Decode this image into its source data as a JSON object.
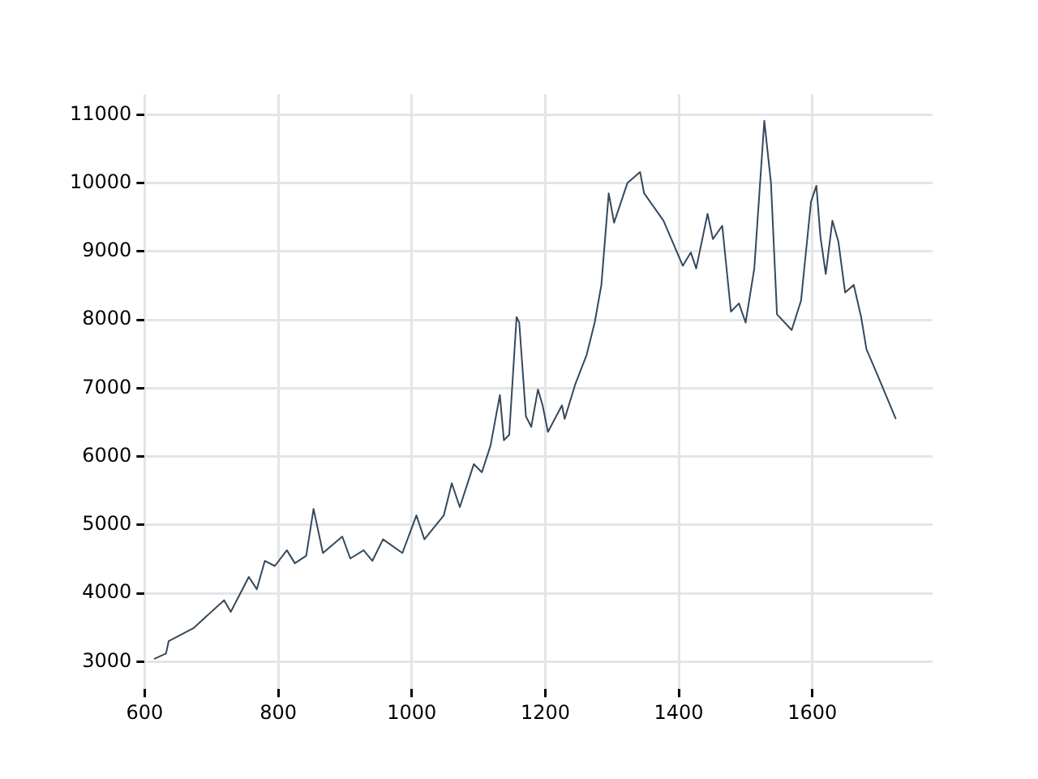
{
  "chart_data": {
    "type": "line",
    "xlim": [
      600,
      1780
    ],
    "ylim": [
      2600,
      11300
    ],
    "xticks": [
      600,
      800,
      1000,
      1200,
      1400,
      1600
    ],
    "yticks": [
      3000,
      4000,
      5000,
      6000,
      7000,
      8000,
      9000,
      10000,
      11000
    ],
    "grid": true,
    "legend": false,
    "marker": "none",
    "line_style": "solid",
    "series": [
      {
        "color": "#34495e",
        "x": [
          614,
          632,
          636,
          673,
          719,
          729,
          756,
          768,
          780,
          795,
          813,
          825,
          842,
          853,
          867,
          896,
          908,
          928,
          941,
          957,
          986,
          1007,
          1019,
          1048,
          1060,
          1072,
          1093,
          1105,
          1118,
          1132,
          1138,
          1146,
          1157,
          1161,
          1171,
          1179,
          1189,
          1196,
          1204,
          1225,
          1229,
          1245,
          1262,
          1274,
          1284,
          1295,
          1303,
          1323,
          1342,
          1348,
          1377,
          1406,
          1418,
          1426,
          1443,
          1451,
          1465,
          1478,
          1490,
          1500,
          1513,
          1528,
          1538,
          1547,
          1569,
          1583,
          1598,
          1606,
          1612,
          1620,
          1630,
          1639,
          1649,
          1662,
          1673,
          1681,
          1698,
          1725
        ],
        "values": [
          3040,
          3120,
          3300,
          3490,
          3900,
          3730,
          4240,
          4060,
          4475,
          4400,
          4630,
          4440,
          4550,
          5235,
          4590,
          4830,
          4510,
          4630,
          4475,
          4790,
          4590,
          5140,
          4790,
          5140,
          5610,
          5260,
          5890,
          5770,
          6160,
          6900,
          6240,
          6320,
          8040,
          7960,
          6590,
          6435,
          6980,
          6750,
          6360,
          6750,
          6550,
          7060,
          7490,
          7960,
          8510,
          9850,
          9420,
          10000,
          10160,
          9850,
          9450,
          8790,
          8985,
          8750,
          9550,
          9180,
          9375,
          8120,
          8240,
          7960,
          8750,
          10910,
          10000,
          8080,
          7850,
          8280,
          9730,
          9960,
          9220,
          8670,
          9450,
          9140,
          8400,
          8510,
          8040,
          7570,
          7180,
          6550
        ]
      }
    ]
  }
}
